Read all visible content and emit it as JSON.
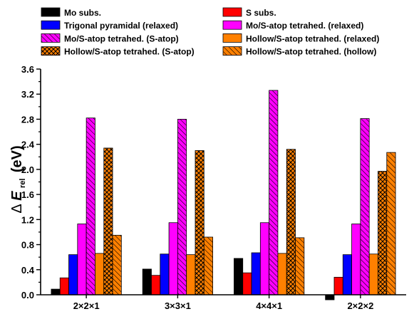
{
  "chart_data": {
    "type": "bar",
    "title": "",
    "xlabel": "",
    "ylabel": {
      "prefix": "Δ",
      "symbol": "E",
      "subscript": "rel",
      "unit": "(eV)"
    },
    "ylim": [
      0.0,
      3.6
    ],
    "yticks": [
      "0.0",
      "0.4",
      "0.8",
      "1.2",
      "1.6",
      "2.0",
      "2.4",
      "2.8",
      "3.2",
      "3.6"
    ],
    "grid": false,
    "legend_position": "top",
    "categories": [
      "2×2×1",
      "3×3×1",
      "4×4×1",
      "2×2×2"
    ],
    "series": [
      {
        "name": "Mo subs.",
        "color": "#000000",
        "pattern": "solid",
        "values": [
          0.09,
          0.41,
          0.58,
          -0.08
        ]
      },
      {
        "name": "S subs.",
        "color": "#ff0000",
        "pattern": "solid",
        "values": [
          0.27,
          0.31,
          0.35,
          0.28
        ]
      },
      {
        "name": "Trigonal pyramidal (relaxed)",
        "color": "#0000ff",
        "pattern": "solid",
        "values": [
          0.64,
          0.65,
          0.67,
          0.64
        ]
      },
      {
        "name": "Mo/S-atop tetrahed. (relaxed)",
        "color": "#ff00ff",
        "pattern": "solid",
        "values": [
          1.13,
          1.15,
          1.15,
          1.13
        ]
      },
      {
        "name": "Mo/S-atop tetrahed. (S-atop)",
        "color": "#ff00ff",
        "pattern": "diagonal",
        "values": [
          2.82,
          2.8,
          3.26,
          2.81
        ]
      },
      {
        "name": "Hollow/S-atop tetrahed. (relaxed)",
        "color": "#ff8000",
        "pattern": "solid",
        "values": [
          0.66,
          0.64,
          0.66,
          0.65
        ]
      },
      {
        "name": "Hollow/S-atop tetrahed. (S-atop)",
        "color": "#ff8000",
        "pattern": "crosshatch",
        "values": [
          2.34,
          2.3,
          2.32,
          1.97
        ]
      },
      {
        "name": "Hollow/S-atop tetrahed. (hollow)",
        "color": "#ff8000",
        "pattern": "diagonal",
        "values": [
          0.95,
          0.92,
          0.91,
          2.27
        ]
      }
    ]
  }
}
